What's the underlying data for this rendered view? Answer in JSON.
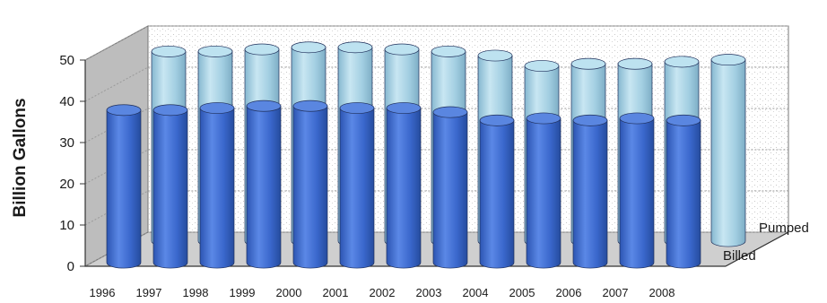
{
  "chart_data": {
    "type": "bar",
    "style": "3d-cylinder",
    "title": "",
    "xlabel": "",
    "ylabel": "Billion Gallons",
    "ylim": [
      0,
      50
    ],
    "yticks": [
      0,
      10,
      20,
      30,
      40,
      50
    ],
    "categories": [
      "1996",
      "1997",
      "1998",
      "1999",
      "2000",
      "2001",
      "2002",
      "2003",
      "2004",
      "2005",
      "2006",
      "2007",
      "2008"
    ],
    "series": [
      {
        "name": "Billed",
        "color": "#3f6fd1",
        "values": [
          37,
          37,
          37.5,
          38,
          38,
          37.5,
          37.5,
          36.5,
          34.5,
          35,
          34.5,
          35,
          34.5
        ]
      },
      {
        "name": "Pumped",
        "color": "#a9d3e6",
        "values": [
          46,
          46,
          46.5,
          47,
          47,
          46.5,
          46,
          45,
          42.5,
          43,
          43,
          43.5,
          44
        ]
      }
    ],
    "grid": true,
    "legend": "depth-axis-labels"
  }
}
